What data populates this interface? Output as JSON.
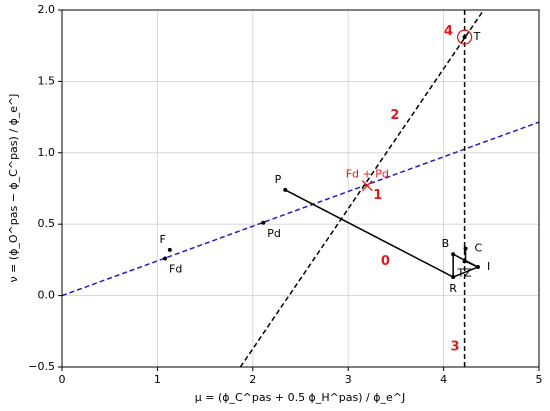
{
  "chart_data": {
    "type": "scatter",
    "xlabel": "μ = (ϕ_C^pas + 0.5 ϕ_H^pas) / ϕ_e^J",
    "ylabel": "ν = (ϕ_O^pas − ϕ_C^pas) / ϕ_e^J",
    "xlim": [
      0,
      5
    ],
    "ylim": [
      -0.5,
      2.0
    ],
    "xticks": [
      0,
      1,
      2,
      3,
      4,
      5
    ],
    "yticks": [
      {
        "value": -0.5,
        "label": "−0.5"
      },
      {
        "value": 0,
        "label": "0.0"
      },
      0.5,
      {
        "value": 1,
        "label": "1.0"
      },
      1.5,
      {
        "value": 2,
        "label": "2.0"
      }
    ],
    "grid": true,
    "lines": [
      {
        "x": [
          0,
          5
        ],
        "y": [
          0,
          1.215
        ],
        "color": "#1f1fbf",
        "dash": true
      },
      {
        "x": [
          1.87,
          4.42
        ],
        "y": [
          -0.5,
          2.0
        ],
        "color": "#000000",
        "dash": true
      },
      {
        "x": [
          4.22,
          4.22
        ],
        "y": [
          -0.5,
          2.0
        ],
        "color": "#000000",
        "dash": true
      },
      {
        "x": [
          2.34,
          4.1,
          4.1,
          4.36,
          4.1
        ],
        "y": [
          0.74,
          0.13,
          0.29,
          0.2,
          0.13
        ],
        "color": "#000000",
        "dash": false
      },
      {
        "x": [
          4.23,
          4.23,
          4.36
        ],
        "y": [
          0.33,
          0.24,
          0.2
        ],
        "color": "#000000",
        "dash": false
      }
    ],
    "points": [
      {
        "label": "P",
        "x": 2.34,
        "y": 0.74,
        "pos": "above-left",
        "color": "#000000",
        "marker": "dot"
      },
      {
        "label": "Pd",
        "x": 2.11,
        "y": 0.51,
        "pos": "below-right",
        "color": "#000000",
        "marker": "dot"
      },
      {
        "label": "F",
        "x": 1.13,
        "y": 0.32,
        "pos": "above-left",
        "color": "#000000",
        "marker": "dot"
      },
      {
        "label": "Fd",
        "x": 1.08,
        "y": 0.26,
        "pos": "below-right",
        "color": "#000000",
        "marker": "dot"
      },
      {
        "label": "Fd + Pd",
        "x": 3.2,
        "y": 0.77,
        "pos": "above",
        "color": "#e31a1c",
        "marker": "x"
      },
      {
        "label": "B",
        "x": 4.1,
        "y": 0.29,
        "pos": "above-left",
        "color": "#000000",
        "marker": "dot"
      },
      {
        "label": "C",
        "x": 4.23,
        "y": 0.33,
        "pos": "right",
        "color": "#000000",
        "marker": "dot"
      },
      {
        "label": "R",
        "x": 4.1,
        "y": 0.13,
        "pos": "below",
        "color": "#000000",
        "marker": "dot"
      },
      {
        "label": "I",
        "x": 4.36,
        "y": 0.2,
        "pos": "right",
        "color": "#000000",
        "marker": "dot"
      },
      {
        "label": "TZ",
        "x": 4.22,
        "y": 0.24,
        "pos": "below",
        "color": "#000000",
        "marker": "dot"
      },
      {
        "label": "T",
        "x": 4.22,
        "y": 1.81,
        "pos": "right",
        "color": "#e31a1c",
        "marker": "circle"
      }
    ],
    "annotations": [
      {
        "text": "4",
        "x": 4.05,
        "y": 1.85,
        "color": "#e31a1c"
      },
      {
        "text": "2",
        "x": 3.49,
        "y": 1.26,
        "color": "#e31a1c"
      },
      {
        "text": "1",
        "x": 3.31,
        "y": 0.7,
        "color": "#e31a1c"
      },
      {
        "text": "0",
        "x": 3.39,
        "y": 0.24,
        "color": "#e31a1c"
      },
      {
        "text": "3",
        "x": 4.12,
        "y": -0.36,
        "color": "#e31a1c"
      }
    ]
  }
}
